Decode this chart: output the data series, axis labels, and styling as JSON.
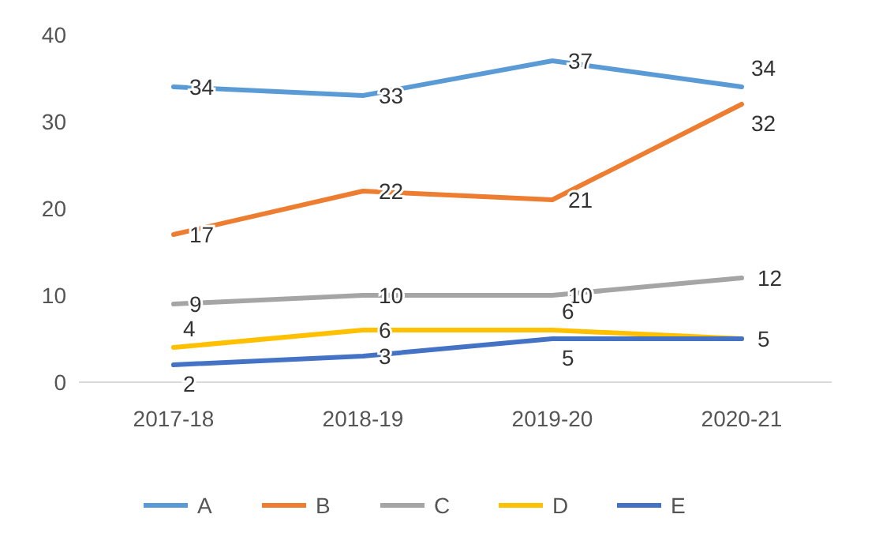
{
  "chart_data": {
    "type": "line",
    "categories": [
      "2017-18",
      "2018-19",
      "2019-20",
      "2020-21"
    ],
    "series": [
      {
        "name": "A",
        "color": "#5b9bd5",
        "values": [
          34,
          33,
          37,
          34
        ],
        "value_labels": [
          "34",
          "33",
          "37",
          "34"
        ]
      },
      {
        "name": "B",
        "color": "#ed7d31",
        "values": [
          17,
          22,
          21,
          32
        ],
        "value_labels": [
          "17",
          "22",
          "21",
          "32"
        ]
      },
      {
        "name": "C",
        "color": "#a5a5a5",
        "values": [
          9,
          10,
          10,
          12
        ],
        "value_labels": [
          "9",
          "10",
          "10",
          "12"
        ]
      },
      {
        "name": "D",
        "color": "#ffc000",
        "values": [
          4,
          6,
          6,
          5
        ],
        "value_labels": [
          "4",
          "6",
          "6",
          null
        ]
      },
      {
        "name": "E",
        "color": "#4472c4",
        "values": [
          2,
          3,
          5,
          5
        ],
        "value_labels": [
          "2",
          "3",
          "5",
          "5"
        ]
      }
    ],
    "ylim": [
      0,
      40
    ],
    "yticks": [
      0,
      10,
      20,
      30,
      40
    ],
    "grid": false,
    "legend": "bottom",
    "marker": "none",
    "line_style": "solid"
  }
}
